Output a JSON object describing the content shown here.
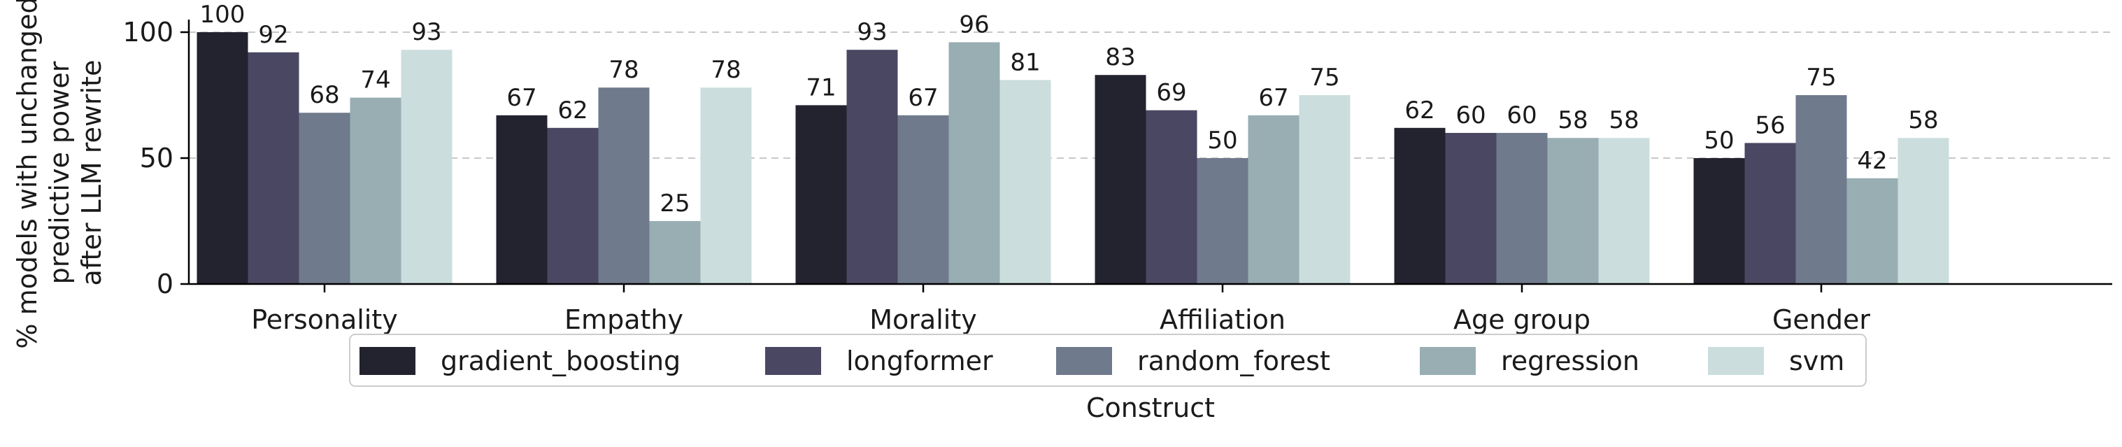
{
  "chart_data": {
    "type": "bar",
    "xlabel": "Construct",
    "ylabel_lines": [
      "% models with unchanged",
      "predictive power",
      "after LLM rewrite"
    ],
    "categories": [
      "Personality",
      "Empathy",
      "Morality",
      "Affiliation",
      "Age group",
      "Gender"
    ],
    "series": [
      {
        "name": "gradient_boosting",
        "color": "#23222f",
        "values": [
          100,
          67,
          71,
          83,
          62,
          50
        ]
      },
      {
        "name": "longformer",
        "color": "#4a4762",
        "values": [
          92,
          62,
          93,
          69,
          60,
          56
        ]
      },
      {
        "name": "random_forest",
        "color": "#6f7a8c",
        "values": [
          68,
          78,
          67,
          50,
          60,
          75
        ]
      },
      {
        "name": "regression",
        "color": "#98aeb3",
        "values": [
          74,
          25,
          96,
          67,
          58,
          42
        ]
      },
      {
        "name": "svm",
        "color": "#cbdedd",
        "values": [
          93,
          78,
          81,
          75,
          58,
          58
        ]
      }
    ],
    "ylim": [
      0,
      105
    ],
    "yticks": [
      0,
      50,
      100
    ],
    "gridlines": [
      50,
      100
    ],
    "grid": "horizontal-dashed",
    "legend_position": "below-axis"
  }
}
